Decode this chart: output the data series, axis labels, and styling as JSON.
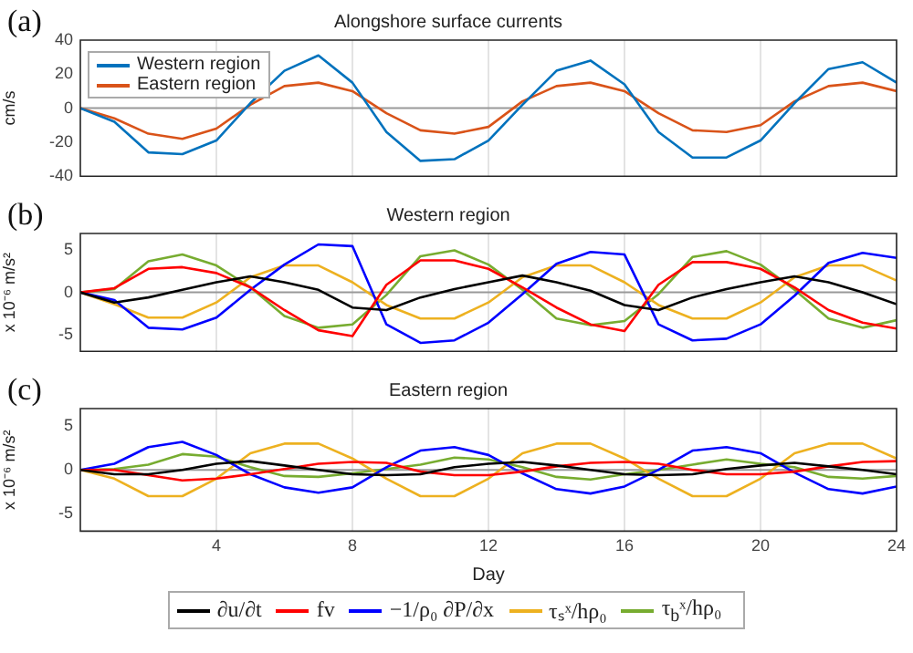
{
  "chart_data": [
    {
      "type": "line",
      "title": "Alongshore surface currents",
      "ylabel": "cm/s",
      "annotations": [
        "(a)"
      ],
      "x": [
        0,
        1,
        2,
        3,
        4,
        5,
        6,
        7,
        8,
        9,
        10,
        11,
        12,
        13,
        14,
        15,
        16,
        17,
        18,
        19,
        20,
        21,
        22,
        23,
        24
      ],
      "xlim": [
        0,
        24
      ],
      "xticks": [
        4,
        8,
        12,
        16,
        20,
        24
      ],
      "ylim": [
        -40,
        40
      ],
      "yticks": [
        -40,
        -20,
        0,
        20,
        40
      ],
      "grid": "x",
      "tick_labels": "y",
      "legend": "top left",
      "ref_lines": [
        {
          "axis": "y",
          "value": 0,
          "color": "#999999"
        }
      ],
      "series": [
        {
          "name": "Western region",
          "color": "#0072bd",
          "values": [
            0,
            -8,
            -26,
            -27,
            -19,
            3,
            22,
            31,
            15,
            -14,
            -31,
            -30,
            -19,
            2,
            22,
            28,
            14,
            -14,
            -29,
            -29,
            -19,
            3,
            23,
            27,
            15
          ]
        },
        {
          "name": "Eastern region",
          "color": "#d95319",
          "values": [
            0,
            -6,
            -15,
            -18,
            -12,
            2,
            13,
            15,
            10,
            -3,
            -13,
            -15,
            -11,
            4,
            13,
            15,
            10,
            -3,
            -13,
            -14,
            -10,
            4,
            13,
            15,
            10
          ]
        }
      ]
    },
    {
      "type": "line",
      "title": "Western region",
      "ylabel": "x 10⁻⁶ m/s²",
      "annotations": [
        "(b)"
      ],
      "x": [
        0,
        1,
        2,
        3,
        4,
        5,
        6,
        7,
        8,
        9,
        10,
        11,
        12,
        13,
        14,
        15,
        16,
        17,
        18,
        19,
        20,
        21,
        22,
        23,
        24
      ],
      "xlim": [
        0,
        24
      ],
      "xticks": [
        4,
        8,
        12,
        16,
        20,
        24
      ],
      "ylim": [
        -7,
        7
      ],
      "yticks": [
        -5,
        0,
        5
      ],
      "grid": "x",
      "tick_labels": "y",
      "ref_lines": [
        {
          "axis": "y",
          "value": 0,
          "color": "#999999"
        }
      ],
      "series": [
        {
          "color": "#000000",
          "values": [
            0,
            -1.2,
            -0.6,
            0.3,
            1.2,
            1.9,
            1.2,
            0.3,
            -1.8,
            -2.1,
            -0.6,
            0.4,
            1.2,
            2,
            1.2,
            0.2,
            -1.5,
            -2.1,
            -0.6,
            0.4,
            1.2,
            1.9,
            1.2,
            0,
            -1.4
          ]
        },
        {
          "color": "#ff0000",
          "values": [
            0,
            0.5,
            2.8,
            3,
            2.3,
            0.6,
            -2.1,
            -4.5,
            -5.2,
            0.9,
            3.8,
            3.8,
            2.8,
            0.6,
            -1.8,
            -3.8,
            -4.6,
            0.9,
            3.6,
            3.6,
            2.8,
            0.6,
            -2.1,
            -3.6,
            -4.3
          ]
        },
        {
          "color": "#0000ff",
          "values": [
            0,
            -0.9,
            -4.2,
            -4.4,
            -3,
            0.3,
            3.3,
            5.7,
            5.5,
            -3.8,
            -6,
            -5.7,
            -3.6,
            -0.2,
            3.4,
            4.8,
            4.5,
            -3.8,
            -5.7,
            -5.5,
            -3.8,
            -0.4,
            3.5,
            4.7,
            4.1
          ]
        },
        {
          "color": "#edb120",
          "values": [
            0,
            -1.4,
            -3,
            -3,
            -1.2,
            1.8,
            3.2,
            3.2,
            1.2,
            -1.5,
            -3.1,
            -3.1,
            -1.2,
            1.8,
            3.2,
            3.2,
            1.2,
            -1.5,
            -3.1,
            -3.1,
            -1.2,
            1.8,
            3.2,
            3.2,
            1.4
          ]
        },
        {
          "color": "#77ac30",
          "values": [
            0,
            0.4,
            3.7,
            4.5,
            3.2,
            0.6,
            -2.8,
            -4.2,
            -3.8,
            -0.3,
            4.3,
            5,
            3.3,
            0.3,
            -3.1,
            -3.9,
            -3.4,
            -0.2,
            4.2,
            4.9,
            3.3,
            0.3,
            -3.1,
            -4.2,
            -3.3
          ]
        }
      ]
    },
    {
      "type": "line",
      "title": "Eastern region",
      "xlabel": "Day",
      "ylabel": "x 10⁻⁶ m/s²",
      "annotations": [
        "(c)"
      ],
      "x": [
        0,
        1,
        2,
        3,
        4,
        5,
        6,
        7,
        8,
        9,
        10,
        11,
        12,
        13,
        14,
        15,
        16,
        17,
        18,
        19,
        20,
        21,
        22,
        23,
        24
      ],
      "xlim": [
        0,
        24
      ],
      "xticks": [
        4,
        8,
        12,
        16,
        20,
        24
      ],
      "ylim": [
        -7,
        7
      ],
      "yticks": [
        -5,
        0,
        5
      ],
      "grid": "x",
      "legend": "bottom",
      "ref_lines": [
        {
          "axis": "y",
          "value": 0,
          "color": "#999999"
        }
      ],
      "series": [
        {
          "name": "∂u/∂t",
          "color": "#000000",
          "values": [
            0,
            -0.5,
            -0.5,
            0,
            0.7,
            1,
            0.5,
            0,
            -0.5,
            -0.6,
            -0.5,
            0.3,
            0.7,
            0.9,
            0.5,
            0,
            -0.5,
            -0.6,
            -0.5,
            0.1,
            0.5,
            0.8,
            0.4,
            0,
            -0.5
          ]
        },
        {
          "name": "fv",
          "color": "#ff0000",
          "values": [
            0,
            0,
            -0.6,
            -1.2,
            -1,
            -0.5,
            0.1,
            0.7,
            0.9,
            0.8,
            -0.2,
            -0.6,
            -0.6,
            -0.2,
            0.4,
            0.8,
            0.9,
            0.7,
            0,
            -0.5,
            -0.5,
            -0.2,
            0.4,
            0.9,
            1
          ]
        },
        {
          "name": "−1/ρ₀ ∂P/∂x",
          "color": "#0000ff",
          "values": [
            0,
            0.7,
            2.6,
            3.2,
            1.7,
            -0.5,
            -2,
            -2.6,
            -2,
            0.3,
            2.2,
            2.6,
            1.7,
            -0.4,
            -2.2,
            -2.7,
            -1.9,
            0,
            2.2,
            2.6,
            1.9,
            -0.3,
            -2.2,
            -2.7,
            -1.9
          ]
        },
        {
          "name": "τₛˣ/hρ₀",
          "color": "#edb120",
          "values": [
            0,
            -1,
            -3,
            -3,
            -1,
            1.9,
            3,
            3,
            1.3,
            -1,
            -3,
            -3,
            -1,
            1.9,
            3,
            3,
            1.3,
            -1,
            -3,
            -3,
            -1,
            1.9,
            3,
            3,
            1.3
          ]
        },
        {
          "name": "τ$_{b}$ˣ/hρ₀",
          "color": "#77ac30",
          "values": [
            0,
            0.1,
            0.6,
            1.8,
            1.5,
            0.3,
            -0.7,
            -0.8,
            -0.4,
            0.1,
            0.6,
            1.4,
            1.2,
            0.3,
            -0.8,
            -1.1,
            -0.5,
            0,
            0.6,
            1.2,
            0.7,
            0.3,
            -0.8,
            -1,
            -0.7
          ]
        }
      ]
    }
  ]
}
